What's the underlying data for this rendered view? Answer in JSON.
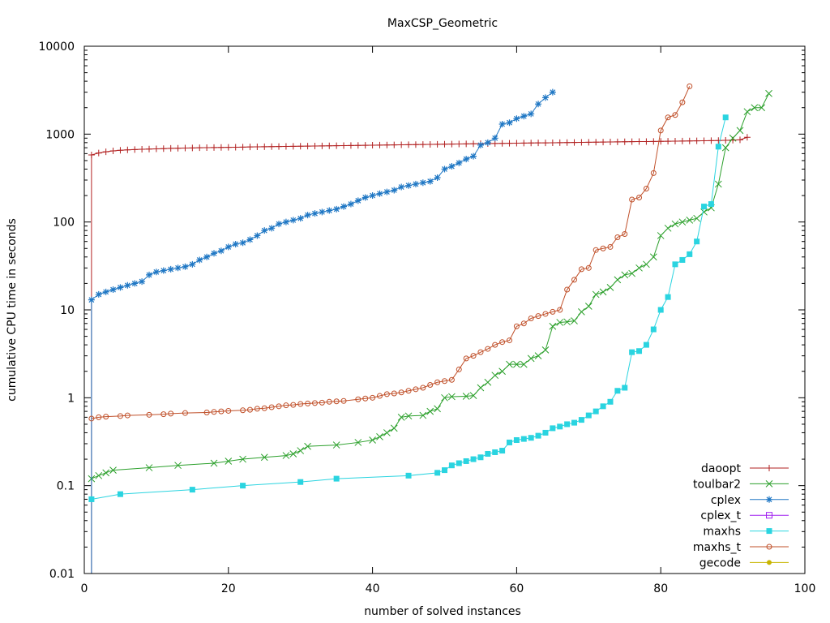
{
  "chart_data": {
    "type": "line",
    "title": "MaxCSP_Geometric",
    "xlabel": "number of solved instances",
    "ylabel": "cumulative CPU time in seconds",
    "xlim": [
      0,
      100
    ],
    "ylim": [
      0.01,
      10000
    ],
    "yscale": "log",
    "xticks": [
      0,
      20,
      40,
      60,
      80,
      100
    ],
    "xtick_labels": [
      "0",
      "20",
      "40",
      "60",
      "80",
      "100"
    ],
    "yticks": [
      0.01,
      0.1,
      1,
      10,
      100,
      1000,
      10000
    ],
    "ytick_labels": [
      "0.01",
      "0.1",
      "1",
      "10",
      "100",
      "1000",
      "10000"
    ],
    "legend_position": "bottom-right",
    "series": [
      {
        "name": "daoopt",
        "color": "#b22222",
        "marker": "plus",
        "drop_to_axis": true,
        "x": [
          1,
          2,
          3,
          4,
          5,
          6,
          7,
          8,
          9,
          10,
          11,
          12,
          13,
          14,
          15,
          16,
          17,
          18,
          19,
          20,
          21,
          22,
          23,
          24,
          25,
          26,
          27,
          28,
          29,
          30,
          31,
          32,
          33,
          34,
          35,
          36,
          37,
          38,
          39,
          40,
          41,
          42,
          43,
          44,
          45,
          46,
          47,
          48,
          49,
          50,
          51,
          52,
          53,
          54,
          55,
          56,
          57,
          58,
          59,
          60,
          61,
          62,
          63,
          64,
          65,
          66,
          67,
          68,
          69,
          70,
          71,
          72,
          73,
          74,
          75,
          76,
          77,
          78,
          79,
          80,
          81,
          82,
          83,
          84,
          85,
          86,
          87,
          88,
          89,
          90,
          91,
          92
        ],
        "y": [
          580,
          610,
          630,
          645,
          655,
          662,
          668,
          672,
          676,
          680,
          684,
          688,
          691,
          694,
          697,
          700,
          702,
          704,
          706,
          708,
          710,
          712,
          714,
          716,
          718,
          720,
          722,
          724,
          726,
          728,
          730,
          732,
          734,
          736,
          738,
          740,
          742,
          744,
          746,
          748,
          750,
          752,
          754,
          756,
          758,
          760,
          762,
          764,
          766,
          768,
          770,
          772,
          774,
          776,
          778,
          780,
          782,
          784,
          786,
          788,
          790,
          792,
          794,
          796,
          798,
          800,
          802,
          804,
          806,
          808,
          810,
          812,
          814,
          816,
          818,
          820,
          822,
          824,
          826,
          828,
          830,
          832,
          834,
          836,
          838,
          840,
          843,
          846,
          850,
          855,
          862,
          920
        ]
      },
      {
        "name": "toulbar2",
        "color": "#2ca02c",
        "marker": "x",
        "x": [
          1,
          2,
          3,
          4,
          9,
          13,
          18,
          20,
          22,
          25,
          28,
          29,
          30,
          31,
          35,
          38,
          40,
          41,
          42,
          43,
          44,
          45,
          47,
          48,
          49,
          50,
          51,
          53,
          54,
          55,
          56,
          57,
          58,
          59,
          60,
          61,
          62,
          63,
          64,
          65,
          66,
          67,
          68,
          69,
          70,
          71,
          72,
          73,
          74,
          75,
          76,
          77,
          78,
          79,
          80,
          81,
          82,
          83,
          84,
          85,
          86,
          87,
          88,
          89,
          90,
          91,
          92,
          93,
          94,
          95
        ],
        "y": [
          0.12,
          0.13,
          0.14,
          0.15,
          0.16,
          0.17,
          0.18,
          0.19,
          0.2,
          0.21,
          0.22,
          0.23,
          0.25,
          0.28,
          0.29,
          0.31,
          0.33,
          0.36,
          0.4,
          0.45,
          0.6,
          0.62,
          0.63,
          0.7,
          0.75,
          1.0,
          1.03,
          1.04,
          1.06,
          1.3,
          1.5,
          1.8,
          2.0,
          2.4,
          2.4,
          2.4,
          2.8,
          3.0,
          3.5,
          6.5,
          7.2,
          7.3,
          7.5,
          9.5,
          11,
          15,
          16,
          18,
          22,
          25,
          26,
          30,
          33,
          40,
          70,
          85,
          95,
          100,
          105,
          110,
          130,
          145,
          270,
          700,
          900,
          1100,
          1800,
          2000,
          2000,
          2900
        ]
      },
      {
        "name": "cplex",
        "color": "#1f77c4",
        "marker": "star",
        "drop_to_axis": true,
        "x": [
          1,
          2,
          3,
          4,
          5,
          6,
          7,
          8,
          9,
          10,
          11,
          12,
          13,
          14,
          15,
          16,
          17,
          18,
          19,
          20,
          21,
          22,
          23,
          24,
          25,
          26,
          27,
          28,
          29,
          30,
          31,
          32,
          33,
          34,
          35,
          36,
          37,
          38,
          39,
          40,
          41,
          42,
          43,
          44,
          45,
          46,
          47,
          48,
          49,
          50,
          51,
          52,
          53,
          54,
          55,
          56,
          57,
          58,
          59,
          60,
          61,
          62,
          63,
          64,
          65
        ],
        "y": [
          13,
          15,
          16,
          17,
          18,
          19,
          20,
          21,
          25,
          27,
          28,
          29,
          30,
          31,
          33,
          37,
          40,
          44,
          47,
          52,
          56,
          58,
          63,
          70,
          80,
          85,
          95,
          100,
          105,
          110,
          120,
          125,
          130,
          135,
          140,
          150,
          160,
          175,
          190,
          200,
          210,
          220,
          230,
          250,
          260,
          270,
          280,
          290,
          320,
          400,
          430,
          470,
          520,
          560,
          750,
          800,
          900,
          1300,
          1350,
          1500,
          1600,
          1700,
          2200,
          2600,
          3000
        ]
      },
      {
        "name": "cplex_t",
        "color": "#a020f0",
        "marker": "square-open",
        "x": [],
        "y": []
      },
      {
        "name": "maxhs",
        "color": "#2ad4e0",
        "marker": "square-filled",
        "x": [
          1,
          5,
          15,
          22,
          30,
          35,
          45,
          49,
          50,
          51,
          52,
          53,
          54,
          55,
          56,
          57,
          58,
          59,
          60,
          61,
          62,
          63,
          64,
          65,
          66,
          67,
          68,
          69,
          70,
          71,
          72,
          73,
          74,
          75,
          76,
          77,
          78,
          79,
          80,
          81,
          82,
          83,
          84,
          85,
          86,
          87,
          88,
          89
        ],
        "y": [
          0.07,
          0.08,
          0.09,
          0.1,
          0.11,
          0.12,
          0.13,
          0.14,
          0.15,
          0.17,
          0.18,
          0.19,
          0.2,
          0.21,
          0.23,
          0.24,
          0.25,
          0.31,
          0.33,
          0.34,
          0.35,
          0.37,
          0.4,
          0.45,
          0.47,
          0.5,
          0.52,
          0.56,
          0.63,
          0.7,
          0.8,
          0.9,
          1.2,
          1.3,
          3.3,
          3.4,
          4.0,
          6.0,
          10,
          14,
          33,
          37,
          43,
          60,
          150,
          160,
          720,
          1550
        ]
      },
      {
        "name": "maxhs_t",
        "color": "#c0502a",
        "marker": "circle-open",
        "x": [
          1,
          2,
          3,
          5,
          6,
          9,
          11,
          12,
          14,
          17,
          18,
          19,
          20,
          22,
          23,
          24,
          25,
          26,
          27,
          28,
          29,
          30,
          31,
          32,
          33,
          34,
          35,
          36,
          38,
          39,
          40,
          41,
          42,
          43,
          44,
          45,
          46,
          47,
          48,
          49,
          50,
          51,
          52,
          53,
          54,
          55,
          56,
          57,
          58,
          59,
          60,
          61,
          62,
          63,
          64,
          65,
          66,
          67,
          68,
          69,
          70,
          71,
          72,
          73,
          74,
          75,
          76,
          77,
          78,
          79,
          80,
          81,
          82,
          83,
          84
        ],
        "y": [
          0.58,
          0.6,
          0.61,
          0.62,
          0.63,
          0.64,
          0.65,
          0.66,
          0.67,
          0.68,
          0.69,
          0.7,
          0.71,
          0.72,
          0.73,
          0.75,
          0.76,
          0.78,
          0.8,
          0.82,
          0.83,
          0.85,
          0.86,
          0.87,
          0.88,
          0.9,
          0.91,
          0.92,
          0.96,
          0.98,
          1.0,
          1.05,
          1.1,
          1.12,
          1.15,
          1.2,
          1.25,
          1.3,
          1.4,
          1.5,
          1.55,
          1.6,
          2.1,
          2.8,
          3.0,
          3.3,
          3.6,
          4.0,
          4.3,
          4.5,
          6.5,
          7.0,
          8.0,
          8.5,
          9.0,
          9.5,
          10,
          17,
          22,
          29,
          30,
          48,
          50,
          52,
          67,
          73,
          180,
          190,
          240,
          360,
          1100,
          1550,
          1650,
          2300,
          3500
        ]
      },
      {
        "name": "gecode",
        "color": "#c8b400",
        "marker": "circle-filled",
        "x": [],
        "y": []
      }
    ]
  }
}
